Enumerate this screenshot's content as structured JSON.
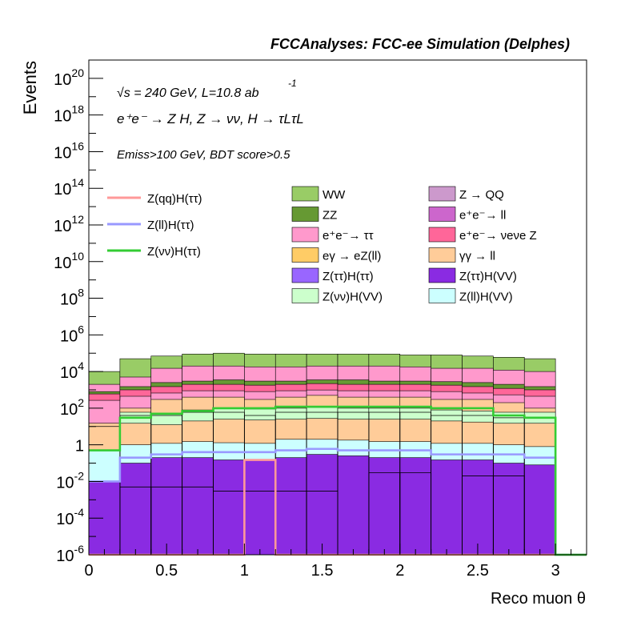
{
  "chart_data": {
    "type": "area",
    "title": "FCCAnalyses: FCC-ee Simulation (Delphes)",
    "xlabel": "Reco muon θ",
    "ylabel": "Events",
    "xlim": [
      0,
      3.2
    ],
    "ylim": [
      1e-06,
      1e+21
    ],
    "log_y": true,
    "x_ticks": [
      "0",
      "0.5",
      "1",
      "1.5",
      "2",
      "2.5",
      "3"
    ],
    "y_ticks": [
      {
        "base": "10",
        "exp": "-6"
      },
      {
        "base": "10",
        "exp": "-4"
      },
      {
        "base": "10",
        "exp": "-2"
      },
      {
        "base": "1",
        "exp": ""
      },
      {
        "base": "10",
        "exp": "2"
      },
      {
        "base": "10",
        "exp": "4"
      },
      {
        "base": "10",
        "exp": "6"
      },
      {
        "base": "10",
        "exp": "8"
      },
      {
        "base": "10",
        "exp": "10"
      },
      {
        "base": "10",
        "exp": "12"
      },
      {
        "base": "10",
        "exp": "14"
      },
      {
        "base": "10",
        "exp": "16"
      },
      {
        "base": "10",
        "exp": "18"
      },
      {
        "base": "10",
        "exp": "20"
      }
    ],
    "annotations": {
      "energy": "√s = 240 GeV, L=10.8 ab",
      "energy_sup": "-1",
      "process": "e⁺e⁻ → Z H, Z → νν, H → τLτL",
      "cut": "Emiss>100 GeV, BDT score>0.5"
    },
    "bin_edges": [
      0,
      0.2,
      0.4,
      0.6,
      0.8,
      1.0,
      1.2,
      1.4,
      1.6,
      1.8,
      2.0,
      2.2,
      2.4,
      2.6,
      2.8,
      3.0
    ],
    "stack_tops": [
      {
        "name": "Z(ττ)H(VV)",
        "color": "#8a2be2",
        "values": [
          0.01,
          0.1,
          0.2,
          0.2,
          0.15,
          0.15,
          0.2,
          0.3,
          0.25,
          0.2,
          0.2,
          0.15,
          0.15,
          0.1,
          0.08
        ]
      },
      {
        "name": "Z(ll)H(VV)",
        "color": "#ccffff",
        "values": [
          0.5,
          1,
          1.2,
          1.5,
          1.3,
          1.2,
          2,
          2,
          1.8,
          1.5,
          1.5,
          1.2,
          1.2,
          1,
          0.8
        ]
      },
      {
        "name": "γγ → ll",
        "color": "#ffcc99",
        "values": [
          15,
          100,
          300,
          400,
          400,
          300,
          400,
          500,
          400,
          400,
          400,
          300,
          300,
          200,
          100
        ]
      },
      {
        "name": "e⁺e⁻ → ττ",
        "color": "#ff99cc",
        "values": [
          2000,
          5000,
          15000,
          20000,
          20000,
          18000,
          18000,
          20000,
          20000,
          20000,
          18000,
          15000,
          15000,
          12000,
          10000
        ]
      },
      {
        "name": "WW",
        "color": "#99cc66",
        "values": [
          10000,
          50000,
          70000,
          90000,
          100000,
          90000,
          90000,
          90000,
          90000,
          90000,
          80000,
          80000,
          70000,
          60000,
          50000
        ]
      }
    ],
    "stack_bands": [
      {
        "name": "Z(νν)H(VV)",
        "color": "#ccffcc",
        "values": [
          0,
          60,
          50,
          80,
          100,
          90,
          100,
          110,
          100,
          100,
          100,
          80,
          70,
          60,
          60
        ]
      },
      {
        "name": "ZZ",
        "color": "#669933",
        "values": [
          800,
          1500,
          2500,
          3000,
          3500,
          3000,
          3000,
          3500,
          3500,
          3000,
          3000,
          2800,
          2500,
          2000,
          1500
        ]
      },
      {
        "name": "e⁺e⁻ → νeνe Z",
        "color": "#ff6699",
        "values": [
          600,
          1000,
          1500,
          2000,
          2000,
          1800,
          2000,
          2200,
          2000,
          2000,
          2000,
          1800,
          1500,
          1200,
          1000
        ]
      }
    ],
    "stack_edges": [
      {
        "name": "Z(ττ)H(ττ)",
        "values": [
          1e-06,
          0.005,
          0.005,
          0.005,
          0.003,
          0.003,
          0.003,
          0.003,
          1e-06,
          0.03,
          0.03,
          1e-06,
          0.02,
          0.02,
          1e-06
        ]
      },
      {
        "name": "Z → QQ",
        "values": [
          10,
          40,
          40,
          60,
          60,
          40,
          60,
          60,
          60,
          60,
          60,
          40,
          40,
          30,
          30
        ]
      }
    ],
    "lines": [
      {
        "name": "Z(qq)H(ττ)",
        "color": "#ff9999",
        "values": [
          1e-06,
          1e-06,
          1e-06,
          1e-06,
          1e-06,
          0.15,
          1e-06,
          1e-06,
          1e-06,
          1e-06,
          1e-06,
          1e-06,
          1e-06,
          1e-06,
          1e-06
        ]
      },
      {
        "name": "Z(ll)H(ττ)",
        "color": "#9999ff",
        "values": [
          0.01,
          0.2,
          0.3,
          0.4,
          0.4,
          0.4,
          0.5,
          0.6,
          0.5,
          0.5,
          0.5,
          0.3,
          0.3,
          0.3,
          0.2
        ]
      },
      {
        "name": "Z(νν)H(ττ)",
        "color": "#33cc33",
        "values": [
          0.5,
          30,
          50,
          70,
          100,
          100,
          120,
          120,
          120,
          120,
          120,
          100,
          100,
          40,
          30
        ]
      }
    ],
    "legend": {
      "placement": "top",
      "lines": [
        {
          "name": "Z(qq)H(ττ)",
          "color": "#ff9999"
        },
        {
          "name": "Z(ll)H(ττ)",
          "color": "#9999ff"
        },
        {
          "name": "Z(νν)H(ττ)",
          "color": "#33cc33"
        }
      ],
      "boxes": [
        {
          "name": "WW",
          "color": "#99cc66"
        },
        {
          "name": "Z → QQ",
          "color": "#cc99cc"
        },
        {
          "name": "ZZ",
          "color": "#669933"
        },
        {
          "name": "e⁺e⁻→ ll",
          "color": "#cc66cc"
        },
        {
          "name": "e⁺e⁻→ ττ",
          "color": "#ff99cc"
        },
        {
          "name": "e⁺e⁻→ νeνe Z",
          "color": "#ff6699"
        },
        {
          "name": "eγ → eZ(ll)",
          "color": "#ffcc66"
        },
        {
          "name": "γγ → ll",
          "color": "#ffcc99"
        },
        {
          "name": "Z(ττ)H(ττ)",
          "color": "#9966ff"
        },
        {
          "name": "Z(ττ)H(VV)",
          "color": "#8a2be2"
        },
        {
          "name": "Z(νν)H(VV)",
          "color": "#ccffcc"
        },
        {
          "name": "Z(ll)H(VV)",
          "color": "#ccffff"
        }
      ]
    }
  }
}
